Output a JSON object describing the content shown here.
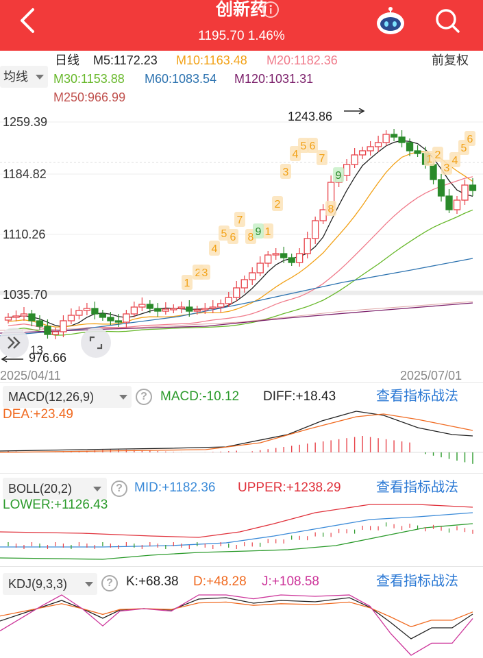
{
  "header": {
    "title": "创新药",
    "price": "1195.70",
    "change_pct": "1.46%",
    "bg_color": "#f23a3a",
    "icons": [
      "back-arrow-icon",
      "info-icon",
      "robot-assistant-icon",
      "search-icon"
    ]
  },
  "ma_bar": {
    "selector_label": "均线",
    "period_label": "日线",
    "adjust_label": "前复权",
    "items": [
      {
        "label": "M5:1172.23",
        "color": "#222222"
      },
      {
        "label": "M10:1163.48",
        "color": "#f2a116"
      },
      {
        "label": "M20:1182.36",
        "color": "#f07a8a"
      },
      {
        "label": "M30:1153.88",
        "color": "#67b82a"
      },
      {
        "label": "M60:1083.54",
        "color": "#2d73b0"
      },
      {
        "label": "M120:1031.31",
        "color": "#7b1f6a"
      },
      {
        "label": "M250:966.99",
        "color": "#c0504d"
      }
    ]
  },
  "main_chart": {
    "y_labels": [
      "1259.39",
      "1184.82",
      "1110.26",
      "1035.70"
    ],
    "high_label": "1243.86",
    "low_label": "976.66",
    "partial_label": "13",
    "date_start": "2025/04/11",
    "date_end": "2025/07/01",
    "up_color": "#e8434a",
    "down_color": "#2a8a2a",
    "signal_up_labels": [
      "1",
      "2",
      "3",
      "4",
      "5",
      "6",
      "7",
      "8",
      "1",
      "2",
      "3",
      "4",
      "5",
      "6",
      "7",
      "8",
      "1",
      "2",
      "3",
      "4",
      "5",
      "6"
    ],
    "signal_down_labels": [
      "9",
      "9"
    ]
  },
  "macd": {
    "selector_label": "MACD(12,26,9)",
    "macd_value": "MACD:-10.12",
    "diff_value": "DIFF:+18.43",
    "dea_value": "DEA:+23.49",
    "link_label": "查看指标战法"
  },
  "boll": {
    "selector_label": "BOLL(20,2)",
    "mid_value": "MID:+1182.36",
    "upper_value": "UPPER:+1238.29",
    "lower_value": "LOWER:+1126.43",
    "link_label": "查看指标战法"
  },
  "kdj": {
    "selector_label": "KDJ(9,3,3)",
    "k_value": "K:+68.38",
    "d_value": "D:+48.28",
    "j_value": "J:+108.58",
    "link_label": "查看指标战法"
  }
}
